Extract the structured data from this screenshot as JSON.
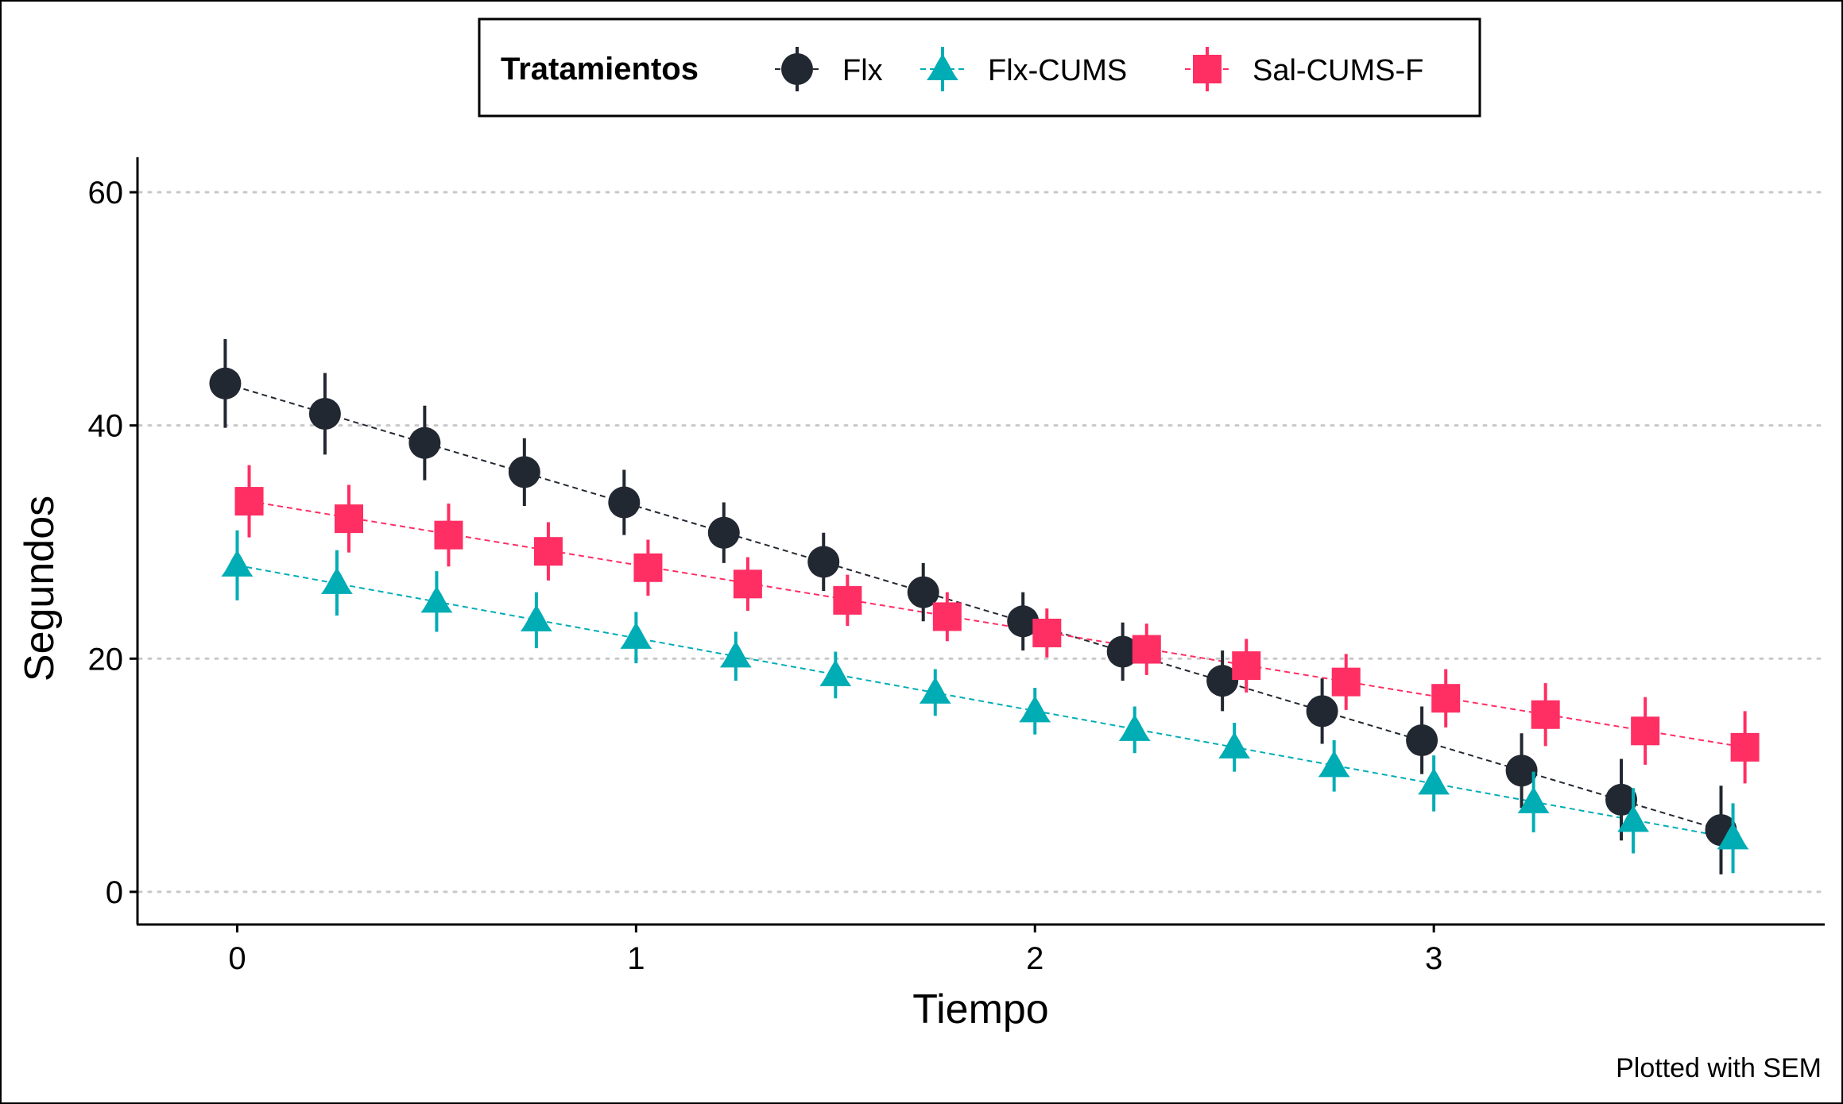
{
  "chart_data": {
    "type": "scatter",
    "title": "",
    "xlabel": "Tiempo",
    "ylabel": "Segundos",
    "caption": "Plotted with SEM",
    "xlim": [
      -0.25,
      3.98
    ],
    "ylim": [
      -2.8,
      63
    ],
    "x_ticks": [
      0,
      1,
      2,
      3
    ],
    "x_tick_labels": [
      "0",
      "1",
      "2",
      "3"
    ],
    "y_ticks": [
      0,
      20,
      40,
      60
    ],
    "y_tick_labels": [
      "0",
      "20",
      "40",
      "60"
    ],
    "grid": "horizontal dotted major gridlines",
    "legend": {
      "title": "Tratamientos",
      "position": "top",
      "entries": [
        "Flx",
        "Flx-CUMS",
        "Sal-CUMS-F"
      ]
    },
    "series": [
      {
        "name": "Flx",
        "color": "#222831",
        "marker": "circle",
        "x": [
          -0.03,
          0.22,
          0.47,
          0.72,
          0.97,
          1.22,
          1.47,
          1.72,
          1.97,
          2.22,
          2.47,
          2.72,
          2.97,
          3.22,
          3.47,
          3.72
        ],
        "y": [
          43.6,
          41.0,
          38.5,
          36.0,
          33.4,
          30.8,
          28.3,
          25.7,
          23.2,
          20.6,
          18.1,
          15.5,
          13.0,
          10.4,
          7.9,
          5.3
        ],
        "sem": [
          3.8,
          3.5,
          3.2,
          2.9,
          2.8,
          2.6,
          2.5,
          2.5,
          2.5,
          2.5,
          2.6,
          2.8,
          2.9,
          3.2,
          3.5,
          3.8
        ]
      },
      {
        "name": "Flx-CUMS",
        "color": "#00adb5",
        "marker": "triangle",
        "x": [
          0.0,
          0.25,
          0.5,
          0.75,
          1.0,
          1.25,
          1.5,
          1.75,
          2.0,
          2.25,
          2.5,
          2.75,
          3.0,
          3.25,
          3.5,
          3.75
        ],
        "y": [
          28.0,
          26.5,
          24.9,
          23.3,
          21.8,
          20.2,
          18.6,
          17.1,
          15.5,
          13.9,
          12.4,
          10.8,
          9.3,
          7.7,
          6.1,
          4.6
        ],
        "sem": [
          3.0,
          2.8,
          2.6,
          2.4,
          2.2,
          2.1,
          2.0,
          2.0,
          2.0,
          2.0,
          2.1,
          2.2,
          2.4,
          2.6,
          2.8,
          3.0
        ]
      },
      {
        "name": "Sal-CUMS-F",
        "color": "#ff2e63",
        "marker": "square",
        "x": [
          0.03,
          0.28,
          0.53,
          0.78,
          1.03,
          1.28,
          1.53,
          1.78,
          2.03,
          2.28,
          2.53,
          2.78,
          3.03,
          3.28,
          3.53,
          3.78
        ],
        "y": [
          33.5,
          32.0,
          30.6,
          29.2,
          27.8,
          26.4,
          25.0,
          23.6,
          22.2,
          20.8,
          19.4,
          18.0,
          16.6,
          15.2,
          13.8,
          12.4
        ],
        "sem": [
          3.1,
          2.9,
          2.7,
          2.5,
          2.4,
          2.3,
          2.2,
          2.1,
          2.1,
          2.2,
          2.3,
          2.4,
          2.5,
          2.7,
          2.9,
          3.1
        ]
      }
    ]
  }
}
